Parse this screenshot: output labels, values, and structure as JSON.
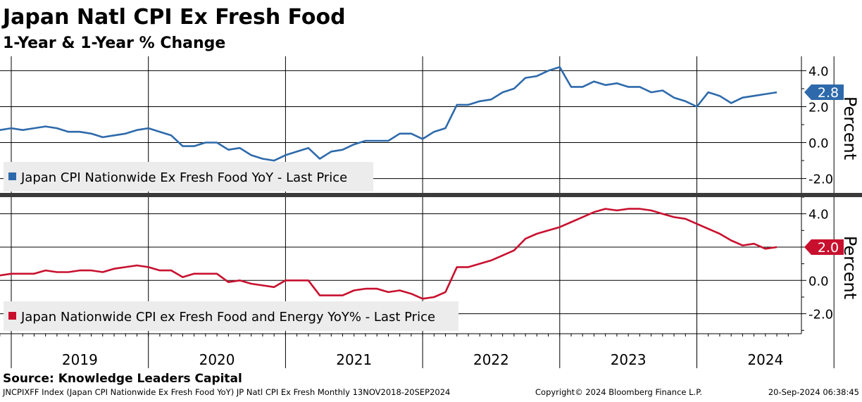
{
  "header": {
    "title": "Japan Natl CPI Ex Fresh Food",
    "subtitle": "1-Year & 1-Year % Change"
  },
  "footer": {
    "source": "Source:  Knowledge Leaders Capital",
    "ticker_info": "JNCPIXFF Index (Japan CPI Nationwide Ex Fresh Food YoY) JP Natl CPI Ex Fresh  Monthly 13NOV2018-20SEP2024",
    "copyright": "Copyright© 2024 Bloomberg Finance L.P.",
    "timestamp": "20-Sep-2024 06:38:45"
  },
  "x_axis": {
    "years": [
      "2019",
      "2020",
      "2021",
      "2022",
      "2023",
      "2024"
    ],
    "start": "2018-11",
    "end": "2024-09"
  },
  "colors": {
    "top_series": "#2e6aab",
    "bottom_series": "#c8102e",
    "grid": "#000000"
  },
  "chart_data": [
    {
      "type": "line",
      "ylabel": "Percent",
      "ylim": [
        -2.8,
        4.8
      ],
      "yticks": [
        "4.0",
        "2.0",
        "0.0",
        "-2.0"
      ],
      "ytick_values": [
        4,
        2,
        0,
        -2
      ],
      "legend": "Japan CPI Nationwide Ex Fresh Food YoY - Last Price",
      "last_value_label": "2.8",
      "last_value": 2.8,
      "series": [
        {
          "name": "Japan CPI Nationwide Ex Fresh Food YoY",
          "x_start": "2018-11",
          "values": [
            0.9,
            0.7,
            0.8,
            0.7,
            0.8,
            0.9,
            0.8,
            0.6,
            0.6,
            0.5,
            0.3,
            0.4,
            0.5,
            0.7,
            0.8,
            0.6,
            0.4,
            -0.2,
            -0.2,
            0.0,
            0.0,
            -0.4,
            -0.3,
            -0.7,
            -0.9,
            -1.0,
            -0.7,
            -0.5,
            -0.3,
            -0.9,
            -0.5,
            -0.4,
            -0.1,
            0.1,
            0.1,
            0.1,
            0.5,
            0.5,
            0.2,
            0.6,
            0.8,
            2.1,
            2.1,
            2.3,
            2.4,
            2.8,
            3.0,
            3.6,
            3.7,
            4.0,
            4.2,
            3.1,
            3.1,
            3.4,
            3.2,
            3.3,
            3.1,
            3.1,
            2.8,
            2.9,
            2.5,
            2.3,
            2.0,
            2.8,
            2.6,
            2.2,
            2.5,
            2.6,
            2.7,
            2.8
          ]
        }
      ]
    },
    {
      "type": "line",
      "ylabel": "Percent",
      "ylim": [
        -3.2,
        5.0
      ],
      "yticks": [
        "4.0",
        "2.0",
        "0.0",
        "-2.0"
      ],
      "ytick_values": [
        4,
        2,
        0,
        -2
      ],
      "legend": "Japan Nationwide CPI ex Fresh Food and Energy YoY% - Last Price",
      "last_value_label": "2.0",
      "last_value": 2.0,
      "series": [
        {
          "name": "Japan Nationwide CPI ex Fresh Food and Energy YoY%",
          "x_start": "2018-11",
          "values": [
            0.3,
            0.3,
            0.4,
            0.4,
            0.4,
            0.6,
            0.5,
            0.5,
            0.6,
            0.6,
            0.5,
            0.7,
            0.8,
            0.9,
            0.8,
            0.6,
            0.6,
            0.2,
            0.4,
            0.4,
            0.4,
            -0.1,
            0.0,
            -0.2,
            -0.3,
            -0.4,
            0.0,
            0.0,
            0.0,
            -0.9,
            -0.9,
            -0.9,
            -0.6,
            -0.5,
            -0.5,
            -0.7,
            -0.6,
            -0.8,
            -1.1,
            -1.0,
            -0.7,
            0.8,
            0.8,
            1.0,
            1.2,
            1.5,
            1.8,
            2.5,
            2.8,
            3.0,
            3.2,
            3.5,
            3.8,
            4.1,
            4.3,
            4.2,
            4.3,
            4.3,
            4.2,
            4.0,
            3.8,
            3.7,
            3.4,
            3.1,
            2.8,
            2.4,
            2.1,
            2.2,
            1.9,
            2.0
          ]
        }
      ]
    }
  ]
}
